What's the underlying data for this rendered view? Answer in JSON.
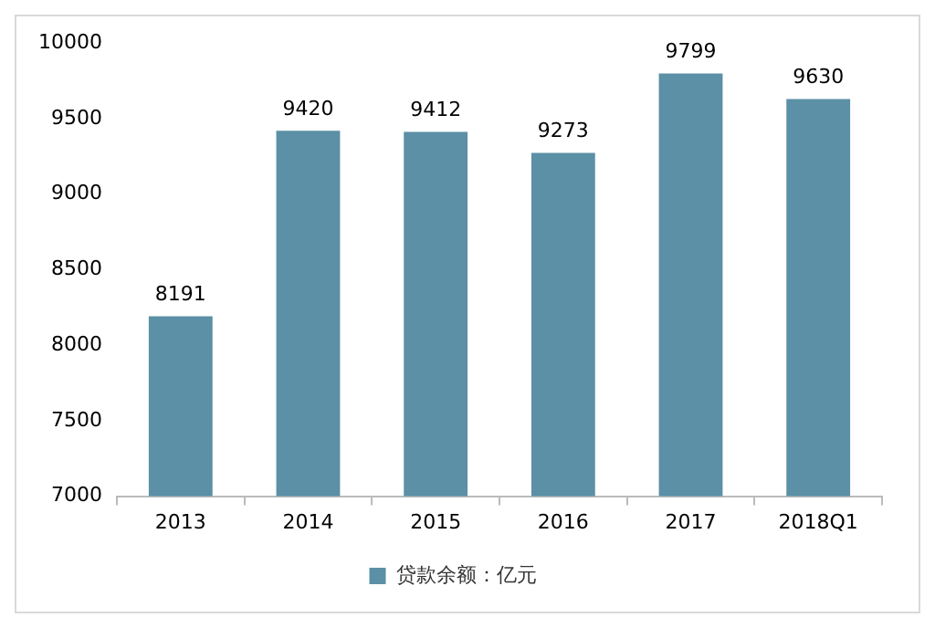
{
  "chart_data": {
    "type": "bar",
    "categories": [
      "2013",
      "2014",
      "2015",
      "2016",
      "2017",
      "2018Q1"
    ],
    "series": [
      {
        "name": "贷款余额：亿元",
        "color": "#5b90a6",
        "values": [
          8191,
          9420,
          9412,
          9273,
          9799,
          9630
        ]
      }
    ],
    "ylim": [
      7000,
      10000
    ],
    "yticks": [
      7000,
      7500,
      8000,
      8500,
      9000,
      9500,
      10000
    ],
    "grid": false,
    "legend": "bottom",
    "data_labels": true
  }
}
